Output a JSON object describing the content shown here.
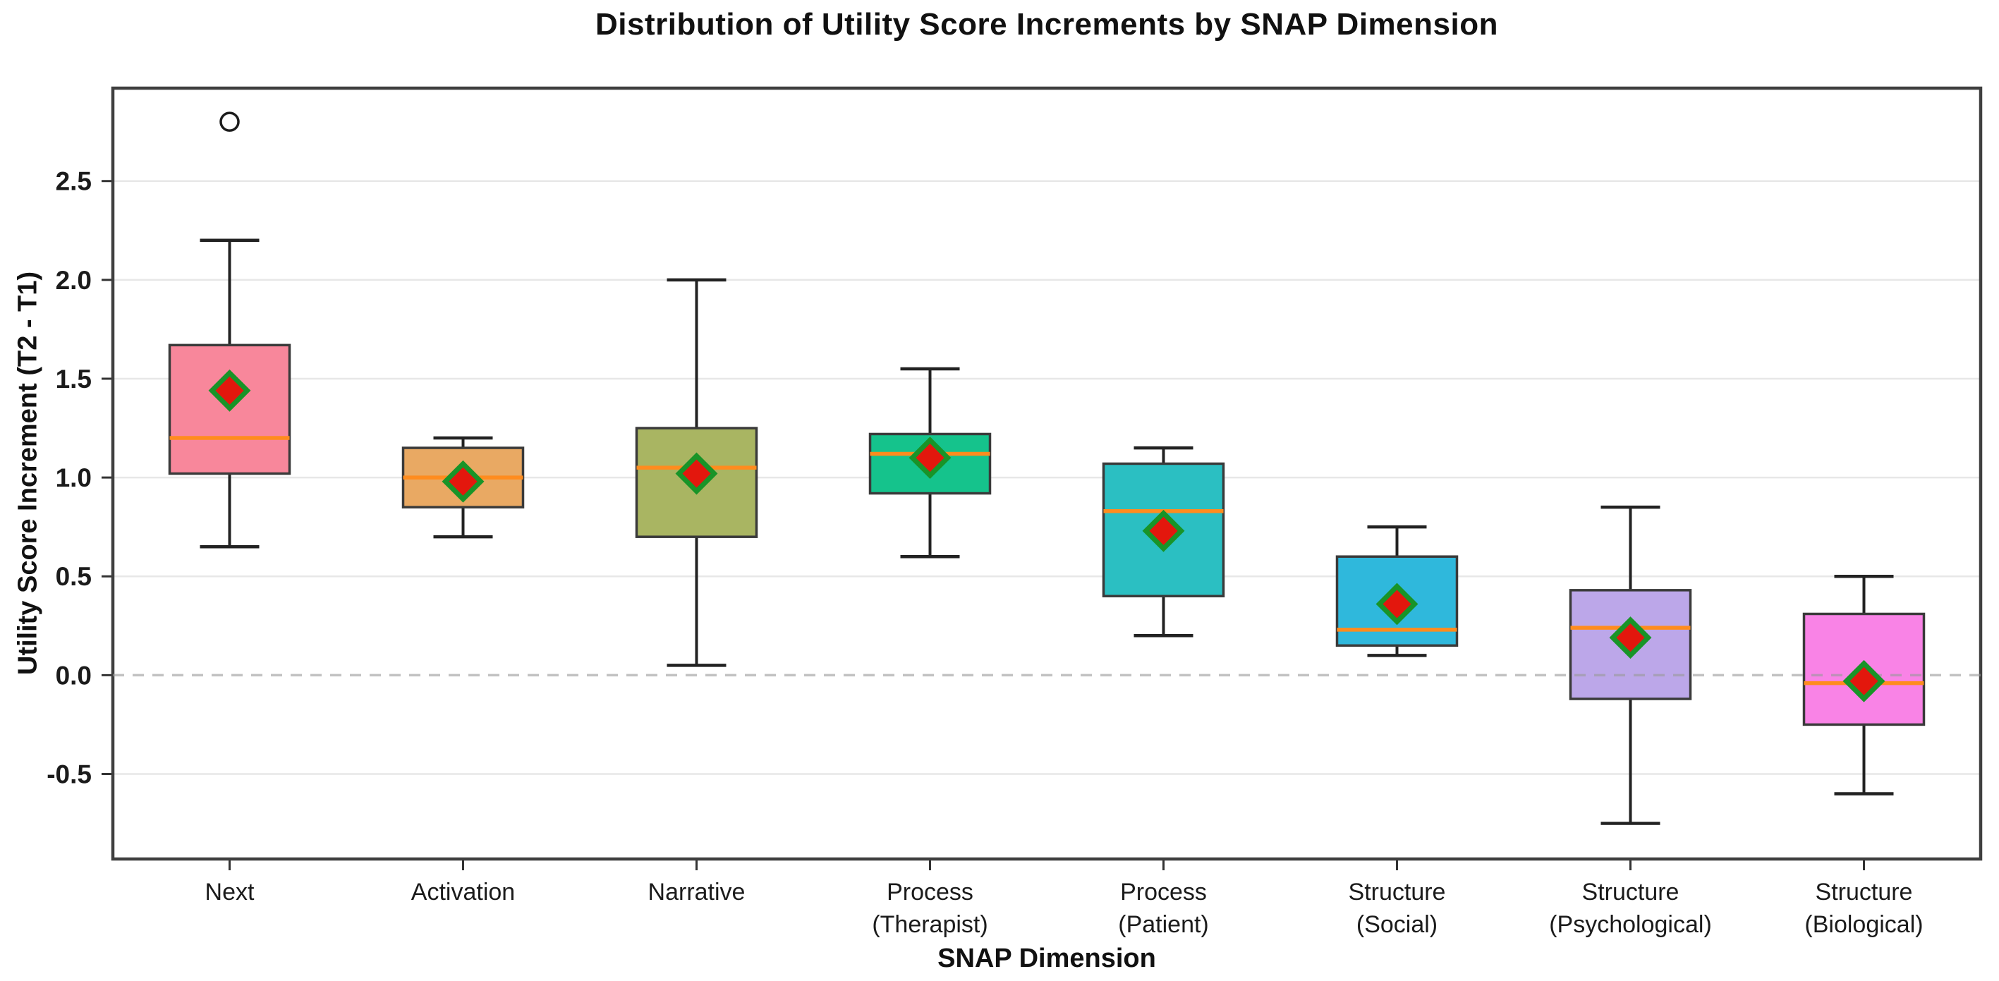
{
  "figure": {
    "title": "Distribution of Utility Score Increments by SNAP Dimension",
    "xlabel": "SNAP Dimension",
    "ylabel": "Utility Score Increment (T2 - T1)"
  },
  "chart_data": {
    "type": "box",
    "title": "Distribution of Utility Score Increments by SNAP Dimension",
    "xlabel": "SNAP Dimension",
    "ylabel": "Utility Score Increment (T2 - T1)",
    "ylim": [
      -0.93,
      2.97
    ],
    "yticks": [
      2.5,
      2.0,
      1.5,
      1.0,
      0.5,
      0.0,
      -0.5
    ],
    "grid": true,
    "legend": "none",
    "zero_line": {
      "value": 0.0,
      "style": "dashed",
      "color": "#9a9a9a"
    },
    "categories": [
      "Next",
      "Activation",
      "Narrative",
      "Process\n(Therapist)",
      "Process\n(Patient)",
      "Structure\n(Social)",
      "Structure\n(Psychological)",
      "Structure\n(Biological)"
    ],
    "series": [
      {
        "label": "Next",
        "color": "#f8879b",
        "whisker_low": 0.65,
        "q1": 1.02,
        "median": 1.2,
        "q3": 1.67,
        "whisker_high": 2.2,
        "mean": 1.44,
        "outliers": [
          2.8
        ]
      },
      {
        "label": "Activation",
        "color": "#e9a963",
        "whisker_low": 0.7,
        "q1": 0.85,
        "median": 1.0,
        "q3": 1.15,
        "whisker_high": 1.2,
        "mean": 0.98,
        "outliers": []
      },
      {
        "label": "Narrative",
        "color": "#a9b562",
        "whisker_low": 0.05,
        "q1": 0.7,
        "median": 1.05,
        "q3": 1.25,
        "whisker_high": 2.0,
        "mean": 1.02,
        "outliers": []
      },
      {
        "label": "Process\n(Therapist)",
        "color": "#15c38c",
        "whisker_low": 0.6,
        "q1": 0.92,
        "median": 1.12,
        "q3": 1.22,
        "whisker_high": 1.55,
        "mean": 1.1,
        "outliers": []
      },
      {
        "label": "Process\n(Patient)",
        "color": "#2bbfc2",
        "whisker_low": 0.2,
        "q1": 0.4,
        "median": 0.83,
        "q3": 1.07,
        "whisker_high": 1.15,
        "mean": 0.73,
        "outliers": []
      },
      {
        "label": "Structure\n(Social)",
        "color": "#2fb8dc",
        "whisker_low": 0.1,
        "q1": 0.15,
        "median": 0.23,
        "q3": 0.6,
        "whisker_high": 0.75,
        "mean": 0.36,
        "outliers": []
      },
      {
        "label": "Structure\n(Psychological)",
        "color": "#bca7e9",
        "whisker_low": -0.75,
        "q1": -0.12,
        "median": 0.24,
        "q3": 0.43,
        "whisker_high": 0.85,
        "mean": 0.19,
        "outliers": []
      },
      {
        "label": "Structure\n(Biological)",
        "color": "#f983e6",
        "whisker_low": -0.6,
        "q1": -0.25,
        "median": -0.04,
        "q3": 0.31,
        "whisker_high": 0.5,
        "mean": -0.03,
        "outliers": []
      }
    ],
    "style": {
      "median_color": "#ff8c1e",
      "mean_marker_fill": "#e3170d",
      "mean_marker_edge": "#189428",
      "box_edge_color": "#3a3a3a",
      "whisker_color": "#222222",
      "grid_color": "#e7e7e7",
      "frame_color": "#3f3f3f",
      "outlier_edge_color": "#1c1c1c"
    }
  }
}
